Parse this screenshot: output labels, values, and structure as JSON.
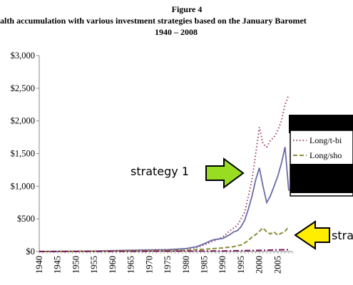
{
  "chart_data": {
    "type": "line",
    "title": "Figure 4",
    "subtitle": "alth accumulation with various investment strategies based on the January Baromet",
    "subtitle_years": "1940 – 2008",
    "xlim": [
      1940,
      2009
    ],
    "ylim": [
      0,
      3000
    ],
    "x_ticks": [
      "1940",
      "1945",
      "1950",
      "1955",
      "1960",
      "1965",
      "1970",
      "1975",
      "1980",
      "1985",
      "1990",
      "1995",
      "2000",
      "2005"
    ],
    "y_ticks": [
      "$0",
      "$500",
      "$1,000",
      "$1,500",
      "$2,000",
      "$2,500",
      "$3,000"
    ],
    "grid": false,
    "legend_position": "right",
    "legend_entries": [
      "Long/t-bi",
      "Long/sho",
      ""
    ],
    "annotations": [
      {
        "label": "strategy 1",
        "arrow_color": "#99dd22"
      },
      {
        "label": "stra",
        "arrow_color": "#ffee00"
      }
    ],
    "series": [
      {
        "name": "Long/t-bi",
        "color": "#a0406b",
        "dash": "dotted",
        "x": [
          1940,
          1945,
          1950,
          1955,
          1960,
          1965,
          1970,
          1975,
          1980,
          1983,
          1985,
          1987,
          1988,
          1990,
          1992,
          1994,
          1995,
          1996,
          1997,
          1998,
          1999,
          2000,
          2001,
          2002,
          2003,
          2004,
          2005,
          2006,
          2007,
          2008
        ],
        "y": [
          1,
          3,
          5,
          9,
          15,
          22,
          28,
          32,
          42,
          60,
          100,
          150,
          170,
          220,
          320,
          400,
          500,
          600,
          850,
          1100,
          1500,
          1900,
          1650,
          1600,
          1700,
          1750,
          1850,
          2000,
          2250,
          2400
        ]
      },
      {
        "name": "",
        "color": "#6a6aa8",
        "dash": "solid",
        "x": [
          1940,
          1945,
          1950,
          1955,
          1960,
          1965,
          1970,
          1975,
          1980,
          1983,
          1985,
          1987,
          1988,
          1990,
          1992,
          1993,
          1994,
          1995,
          1996,
          1997,
          1998,
          1999,
          2000,
          2001,
          2002,
          2003,
          2004,
          2005,
          2006,
          2007,
          2008
        ],
        "y": [
          1,
          2,
          4,
          7,
          12,
          18,
          22,
          25,
          45,
          75,
          120,
          170,
          185,
          200,
          260,
          300,
          320,
          380,
          480,
          650,
          850,
          1100,
          1280,
          1000,
          750,
          850,
          1000,
          1150,
          1350,
          1600,
          930
        ]
      },
      {
        "name": "Long/sho",
        "color": "#8c8c3a",
        "dash": "dashed",
        "x": [
          1940,
          1945,
          1950,
          1955,
          1960,
          1965,
          1970,
          1975,
          1980,
          1985,
          1990,
          1993,
          1995,
          1996,
          1997,
          1998,
          1999,
          2000,
          2001,
          2002,
          2003,
          2004,
          2005,
          2006,
          2007,
          2008
        ],
        "y": [
          1,
          2,
          3,
          5,
          7,
          10,
          12,
          14,
          20,
          35,
          55,
          75,
          100,
          130,
          170,
          220,
          260,
          310,
          360,
          300,
          270,
          300,
          250,
          280,
          310,
          380
        ]
      },
      {
        "name": "",
        "color": "#7a1a5a",
        "dash": "dashdot",
        "x": [
          1940,
          1950,
          1960,
          1970,
          1980,
          1990,
          1995,
          2000,
          2005,
          2008
        ],
        "y": [
          0,
          1,
          2,
          3,
          5,
          9,
          13,
          18,
          25,
          28
        ]
      }
    ]
  }
}
